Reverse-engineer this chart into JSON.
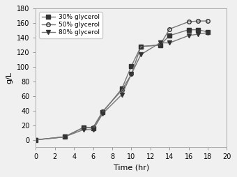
{
  "time": [
    0,
    3,
    5,
    6,
    7,
    9,
    10,
    11,
    13,
    14,
    16,
    17,
    18
  ],
  "series_30": [
    0,
    4,
    17,
    16,
    38,
    70,
    101,
    128,
    130,
    143,
    151,
    151,
    148
  ],
  "series_50": [
    0,
    4,
    17,
    17,
    39,
    68,
    90,
    128,
    130,
    152,
    162,
    163,
    163
  ],
  "series_80": [
    0,
    4,
    14,
    14,
    36,
    62,
    90,
    117,
    133,
    133,
    143,
    145,
    147
  ],
  "labels": [
    "30% glycerol",
    "50% glycerol",
    "80% glycerol"
  ],
  "xlabel": "Time (hr)",
  "ylabel": "g/L",
  "xlim": [
    0,
    20
  ],
  "ylim": [
    -10,
    180
  ],
  "xticks": [
    0,
    2,
    4,
    6,
    8,
    10,
    12,
    14,
    16,
    18,
    20
  ],
  "yticks": [
    0,
    20,
    40,
    60,
    80,
    100,
    120,
    140,
    160,
    180
  ],
  "line_color": "#777777",
  "marker_30": "s",
  "marker_50": "o",
  "marker_80": "v",
  "fillstyle_30": "full",
  "fillstyle_50": "none",
  "fillstyle_80": "full",
  "markersize": 4,
  "linewidth": 1.0,
  "legend_fontsize": 6.5,
  "axis_fontsize": 8,
  "tick_fontsize": 7,
  "bg_color": "#f0f0f0",
  "fig_bg": "#f0f0f0"
}
